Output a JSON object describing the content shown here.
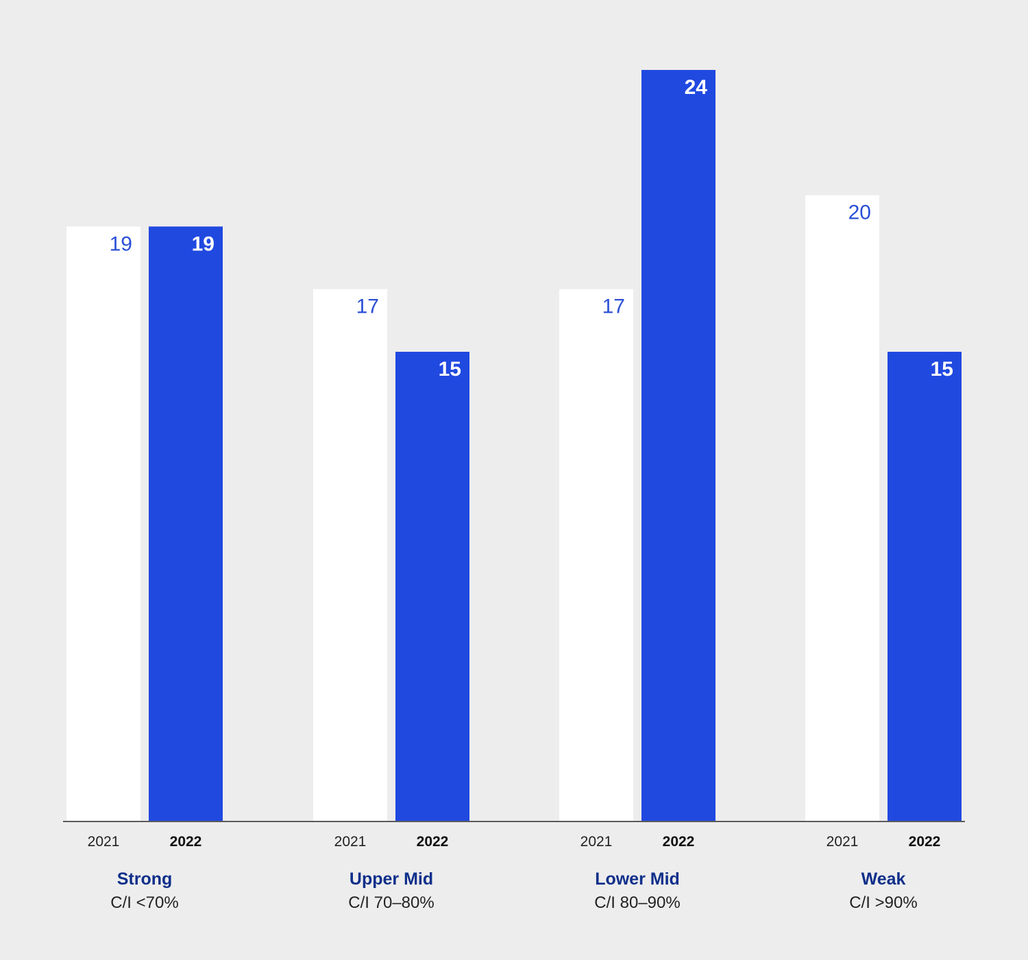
{
  "chart_data": {
    "type": "bar",
    "categories": [
      "Strong",
      "Upper Mid",
      "Lower Mid",
      "Weak"
    ],
    "category_sublabels": [
      "C/I <70%",
      "C/I 70–80%",
      "C/I 80–90%",
      "C/I >90%"
    ],
    "series": [
      {
        "name": "2021",
        "values": [
          19,
          17,
          17,
          20
        ],
        "color": "#ffffff",
        "label_color": "#2a4fd6"
      },
      {
        "name": "2022",
        "values": [
          19,
          15,
          24,
          15
        ],
        "color": "#2049e0",
        "label_color": "#ffffff"
      }
    ],
    "ylim": [
      0,
      24
    ],
    "title": "",
    "xlabel": "",
    "ylabel": "",
    "grid": false,
    "legend": "none"
  },
  "colors": {
    "background": "#ededed",
    "axis": "#5a5a5a",
    "category_title": "#0f2f8a"
  }
}
